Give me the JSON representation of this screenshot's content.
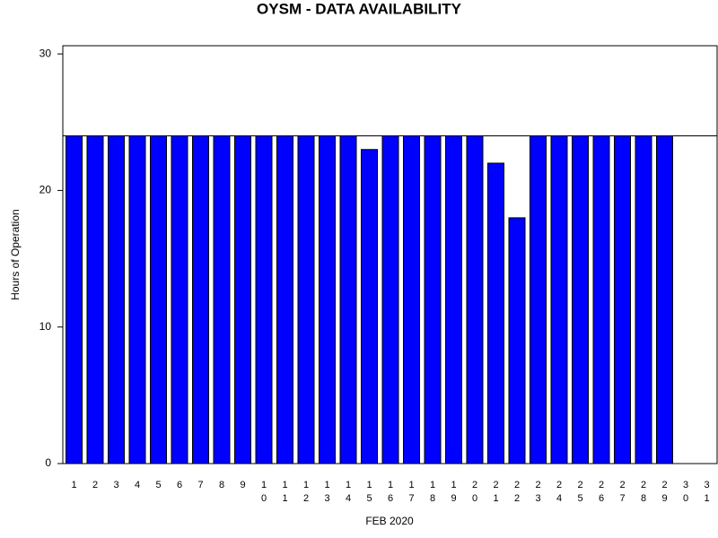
{
  "chart_data": {
    "type": "bar",
    "title": "OYSM - DATA AVAILABILITY",
    "x_label": "FEB 2020",
    "y_label": "Hours of Operation",
    "categories": [
      "1",
      "2",
      "3",
      "4",
      "5",
      "6",
      "7",
      "8",
      "9",
      "10",
      "11",
      "12",
      "13",
      "14",
      "15",
      "16",
      "17",
      "18",
      "19",
      "20",
      "21",
      "22",
      "23",
      "24",
      "25",
      "26",
      "27",
      "28",
      "29",
      "30",
      "31"
    ],
    "values": [
      24,
      24,
      24,
      24,
      24,
      24,
      24,
      24,
      24,
      24,
      24,
      24,
      24,
      24,
      23,
      24,
      24,
      24,
      24,
      24,
      22,
      18,
      24,
      24,
      24,
      24,
      24,
      24,
      24,
      null,
      null
    ],
    "color": "#0000ff",
    "ylim": [
      0,
      30.6
    ],
    "yticks": [
      0,
      10,
      20,
      30
    ],
    "reference_line": 24
  }
}
